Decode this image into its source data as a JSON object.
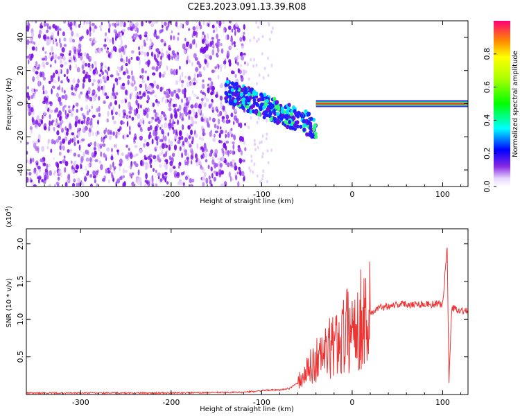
{
  "title": "C2E3.2023.091.13.39.R08",
  "chart_data": [
    {
      "type": "heatmap",
      "xlabel": "Height of straight line (km)",
      "ylabel": "Frequency (Hz)",
      "xlim": [
        -360,
        128
      ],
      "ylim": [
        -50,
        50
      ],
      "xticks": [
        -300,
        -200,
        -100,
        0,
        100
      ],
      "yticks": [
        -40,
        -20,
        0,
        20,
        40
      ],
      "colorbar": {
        "label": "Normalized spectral amplitude",
        "range": [
          0,
          1
        ],
        "ticks": [
          0.0,
          0.2,
          0.4,
          0.6,
          0.8
        ]
      },
      "features": [
        {
          "x_range": [
            -360,
            -118
          ],
          "description": "broadband low-amplitude noise across all frequencies"
        },
        {
          "x_range": [
            -140,
            -40
          ],
          "freq_range": [
            -20,
            15
          ],
          "amplitude": 0.4
        },
        {
          "x_range": [
            -40,
            128
          ],
          "freq_center": 0,
          "amplitude": 0.9
        }
      ]
    },
    {
      "type": "line",
      "xlabel": "Height of straight line (km)",
      "ylabel": "SNR (10 * v/v)",
      "yscale_label": "(x10",
      "yscale_exp": "4",
      "yscale_close": ")",
      "xlim": [
        -360,
        128
      ],
      "ylim": [
        0,
        2.2
      ],
      "xticks": [
        -300,
        -200,
        -100,
        0,
        100
      ],
      "yticks": [
        0.5,
        1.0,
        1.5,
        2.0
      ],
      "series": [
        {
          "color": "#ee3333",
          "x": [
            -360,
            -300,
            -200,
            -120,
            -100,
            -90,
            -80,
            -70,
            -60,
            -50,
            -40,
            -30,
            -20,
            -10,
            0,
            10,
            20,
            30,
            40,
            50,
            60,
            70,
            80,
            90,
            100,
            105,
            107,
            110,
            120,
            128
          ],
          "y": [
            0.02,
            0.02,
            0.02,
            0.03,
            0.05,
            0.06,
            0.06,
            0.08,
            0.15,
            0.3,
            0.45,
            0.55,
            0.65,
            0.8,
            0.9,
            1.0,
            1.08,
            1.15,
            1.18,
            1.2,
            1.2,
            1.2,
            1.2,
            1.2,
            1.2,
            1.95,
            0.15,
            1.15,
            1.12,
            1.1
          ]
        }
      ]
    }
  ]
}
